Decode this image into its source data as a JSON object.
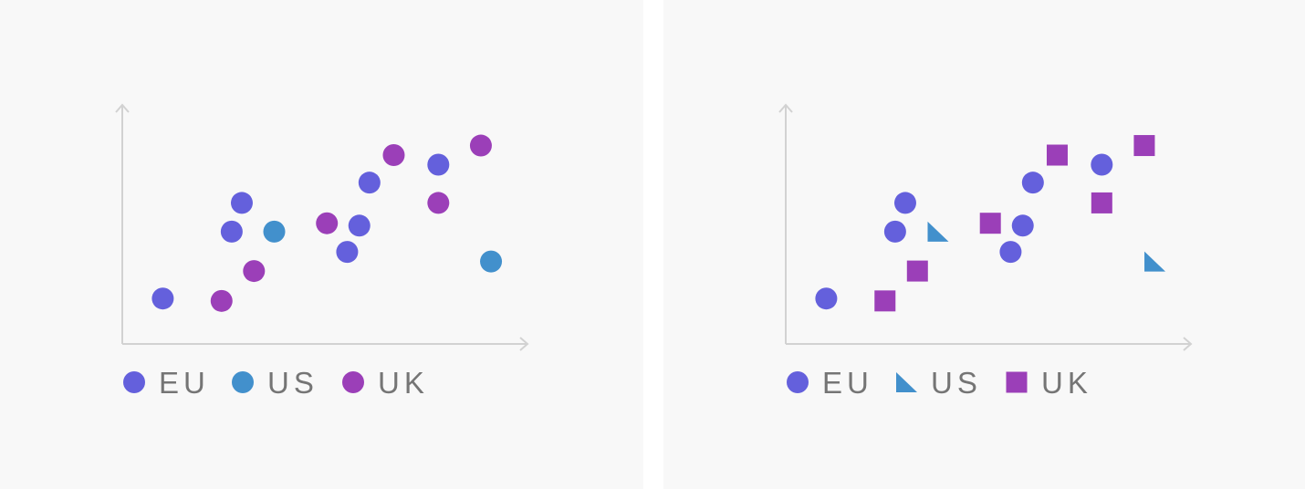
{
  "colors": {
    "EU": "#6460dc",
    "US": "#4290cc",
    "UK": "#9b3fb8",
    "axis": "#d2d2d2",
    "legend_text": "#757575"
  },
  "chart_data": [
    {
      "type": "scatter",
      "title": "",
      "xlabel": "",
      "ylabel": "",
      "xlim": [
        0,
        10
      ],
      "ylim": [
        0,
        10
      ],
      "grid": false,
      "legend": "bottom-left",
      "marker_mode": "circle",
      "series": [
        {
          "name": "EU",
          "marker": "circle",
          "x": [
            1.0,
            2.7,
            2.95,
            5.55,
            5.85,
            6.1,
            7.8
          ],
          "y": [
            1.9,
            4.7,
            5.9,
            3.85,
            4.95,
            6.75,
            7.5
          ]
        },
        {
          "name": "US",
          "marker": "circle",
          "x": [
            3.75,
            9.1
          ],
          "y": [
            4.7,
            3.45
          ]
        },
        {
          "name": "UK",
          "marker": "circle",
          "x": [
            2.45,
            3.25,
            5.05,
            6.7,
            7.8,
            8.85
          ],
          "y": [
            1.8,
            3.05,
            5.05,
            7.9,
            5.9,
            8.3
          ]
        }
      ]
    },
    {
      "type": "scatter",
      "title": "",
      "xlabel": "",
      "ylabel": "",
      "xlim": [
        0,
        10
      ],
      "ylim": [
        0,
        10
      ],
      "grid": false,
      "legend": "bottom-left",
      "marker_mode": "shape",
      "series": [
        {
          "name": "EU",
          "marker": "circle",
          "x": [
            1.0,
            2.7,
            2.95,
            5.55,
            5.85,
            6.1,
            7.8
          ],
          "y": [
            1.9,
            4.7,
            5.9,
            3.85,
            4.95,
            6.75,
            7.5
          ]
        },
        {
          "name": "US",
          "marker": "triangle",
          "x": [
            3.75,
            9.1
          ],
          "y": [
            4.7,
            3.45
          ]
        },
        {
          "name": "UK",
          "marker": "square",
          "x": [
            2.45,
            3.25,
            5.05,
            6.7,
            7.8,
            8.85
          ],
          "y": [
            1.8,
            3.05,
            5.05,
            7.9,
            5.9,
            8.3
          ]
        }
      ]
    }
  ]
}
